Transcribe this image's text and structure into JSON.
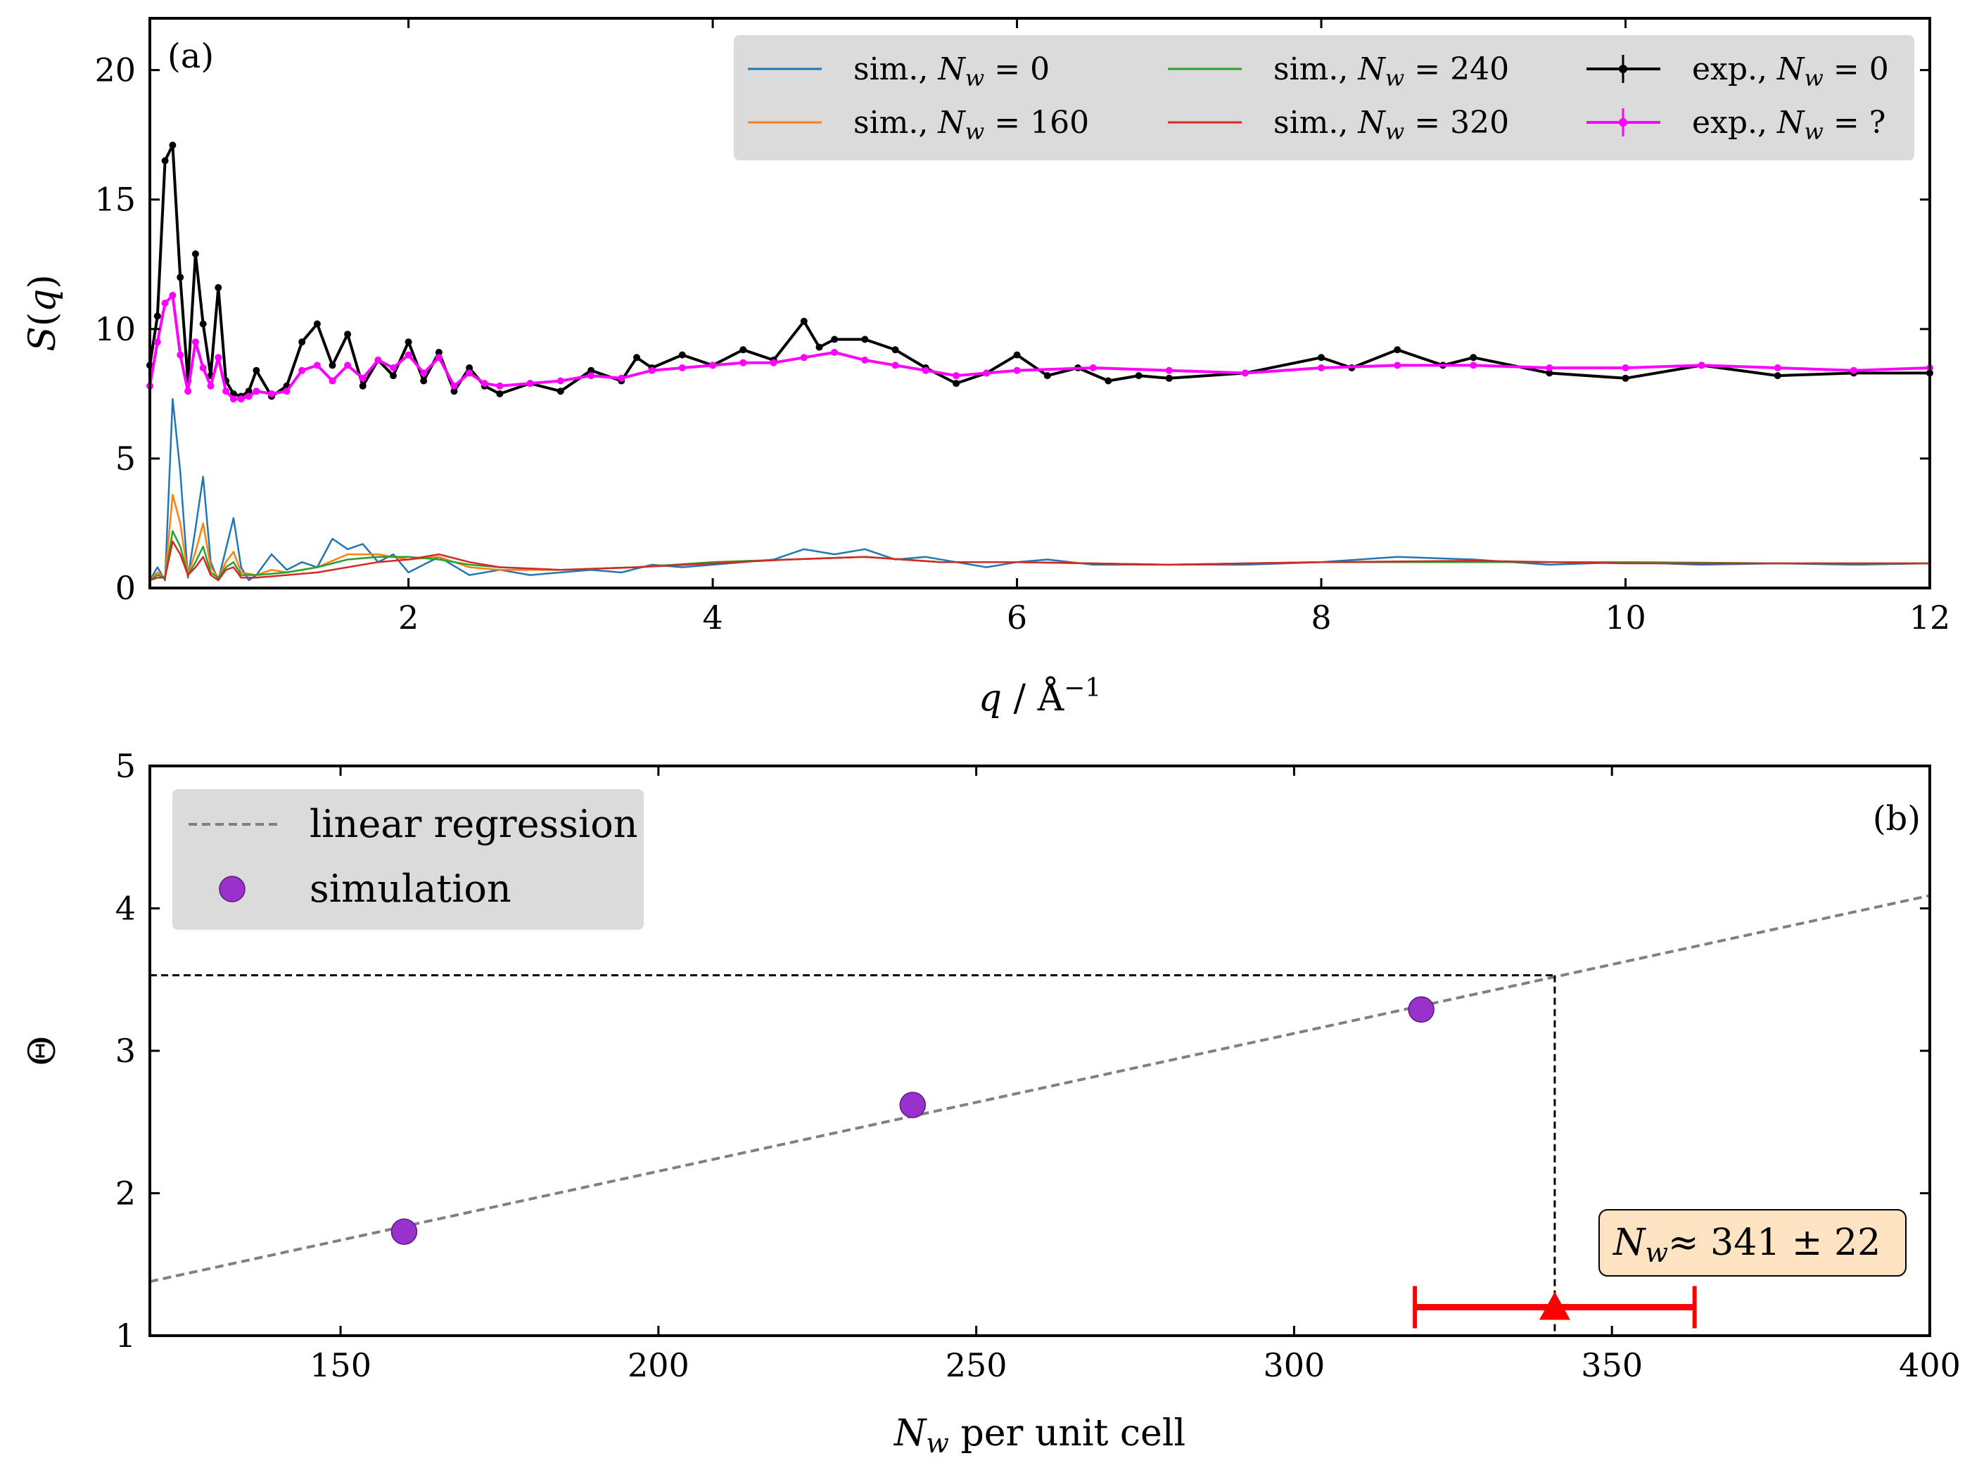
{
  "chart_data": [
    {
      "id": "a",
      "type": "line",
      "panel_label": "(a)",
      "xlabel": "q / Å⁻¹",
      "ylabel": "S(q)",
      "xlim": [
        0.3,
        12
      ],
      "ylim": [
        0,
        22
      ],
      "xticks": [
        2,
        4,
        6,
        8,
        10,
        12
      ],
      "xtick_labels": [
        "2",
        "4",
        "6",
        "8",
        "10",
        "12"
      ],
      "yticks": [
        0,
        5,
        10,
        15,
        20
      ],
      "ytick_labels": [
        "0",
        "5",
        "10",
        "15",
        "20"
      ],
      "legend_position": "top-right",
      "series": [
        {
          "name": "sim., N_w = 0",
          "label_text": "sim., Nw = 0",
          "color": "#1f77b4",
          "style": "line",
          "x": [
            0.3,
            0.35,
            0.4,
            0.45,
            0.5,
            0.55,
            0.6,
            0.65,
            0.7,
            0.75,
            0.8,
            0.85,
            0.9,
            0.95,
            1.0,
            1.1,
            1.2,
            1.3,
            1.4,
            1.5,
            1.6,
            1.7,
            1.8,
            1.9,
            2.0,
            2.2,
            2.4,
            2.6,
            2.8,
            3.0,
            3.2,
            3.4,
            3.6,
            3.8,
            4.0,
            4.2,
            4.4,
            4.6,
            4.8,
            5.0,
            5.2,
            5.4,
            5.6,
            5.8,
            6.0,
            6.2,
            6.5,
            7.0,
            7.5,
            8.0,
            8.5,
            9.0,
            9.5,
            10,
            10.5,
            11,
            11.5,
            12
          ],
          "y": [
            0.3,
            0.8,
            0.3,
            7.3,
            4.5,
            0.4,
            2.3,
            4.3,
            1.0,
            0.3,
            1.5,
            2.7,
            0.8,
            0.3,
            0.5,
            1.3,
            0.7,
            1.0,
            0.8,
            1.9,
            1.5,
            1.7,
            1.0,
            1.3,
            0.6,
            1.2,
            0.5,
            0.7,
            0.5,
            0.6,
            0.7,
            0.6,
            0.9,
            0.8,
            0.9,
            1.0,
            1.1,
            1.5,
            1.3,
            1.5,
            1.1,
            1.2,
            1.0,
            0.8,
            1.0,
            1.1,
            0.9,
            0.9,
            0.9,
            1.0,
            1.2,
            1.1,
            0.9,
            1.0,
            0.9,
            0.95,
            0.9,
            0.95
          ]
        },
        {
          "name": "sim., N_w = 160",
          "label_text": "sim., Nw = 160",
          "color": "#ff7f0e",
          "style": "line",
          "x": [
            0.3,
            0.35,
            0.4,
            0.45,
            0.5,
            0.55,
            0.6,
            0.65,
            0.7,
            0.75,
            0.8,
            0.85,
            0.9,
            1.0,
            1.1,
            1.2,
            1.4,
            1.6,
            1.8,
            2.0,
            2.2,
            2.4,
            2.6,
            3.0,
            3.5,
            4.0,
            4.5,
            5.0,
            5.5,
            6.0,
            7.0,
            8.0,
            9.0,
            10,
            11,
            12
          ],
          "y": [
            0.3,
            0.6,
            0.4,
            3.6,
            2.5,
            0.5,
            1.4,
            2.5,
            0.8,
            0.4,
            1.0,
            1.4,
            0.6,
            0.5,
            0.7,
            0.6,
            0.8,
            1.3,
            1.3,
            1.1,
            1.2,
            0.8,
            0.7,
            0.7,
            0.8,
            1.0,
            1.1,
            1.2,
            1.0,
            1.0,
            0.9,
            1.0,
            1.0,
            1.0,
            0.95,
            0.95
          ]
        },
        {
          "name": "sim., N_w = 240",
          "label_text": "sim., Nw = 240",
          "color": "#2ca02c",
          "style": "line",
          "x": [
            0.3,
            0.35,
            0.4,
            0.45,
            0.5,
            0.55,
            0.6,
            0.65,
            0.7,
            0.75,
            0.8,
            0.85,
            0.9,
            1.0,
            1.2,
            1.4,
            1.6,
            1.8,
            2.0,
            2.2,
            2.4,
            2.6,
            3.0,
            3.5,
            4.0,
            4.5,
            5.0,
            5.5,
            6.0,
            7.0,
            8.0,
            9.0,
            10,
            11,
            12
          ],
          "y": [
            0.3,
            0.5,
            0.4,
            2.2,
            1.6,
            0.5,
            1.0,
            1.6,
            0.6,
            0.4,
            0.8,
            1.0,
            0.5,
            0.5,
            0.6,
            0.8,
            1.1,
            1.2,
            1.2,
            1.1,
            0.9,
            0.8,
            0.7,
            0.8,
            1.0,
            1.1,
            1.2,
            1.0,
            1.0,
            0.9,
            1.0,
            1.0,
            1.0,
            0.95,
            0.95
          ]
        },
        {
          "name": "sim., N_w = 320",
          "label_text": "sim., Nw = 320",
          "color": "#d62728",
          "style": "line",
          "x": [
            0.3,
            0.35,
            0.4,
            0.45,
            0.5,
            0.55,
            0.6,
            0.65,
            0.7,
            0.75,
            0.8,
            0.85,
            0.9,
            1.0,
            1.2,
            1.4,
            1.6,
            1.8,
            2.0,
            2.2,
            2.4,
            2.6,
            3.0,
            3.5,
            4.0,
            4.5,
            5.0,
            5.5,
            6.0,
            7.0,
            8.0,
            9.0,
            10,
            11,
            12
          ],
          "y": [
            0.3,
            0.4,
            0.4,
            1.8,
            1.3,
            0.5,
            0.8,
            1.2,
            0.5,
            0.3,
            0.7,
            0.8,
            0.4,
            0.4,
            0.5,
            0.6,
            0.8,
            1.0,
            1.1,
            1.3,
            1.0,
            0.8,
            0.7,
            0.8,
            0.95,
            1.1,
            1.2,
            1.0,
            1.0,
            0.9,
            1.0,
            1.05,
            0.95,
            0.95,
            0.95
          ]
        },
        {
          "name": "exp., N_w = 0",
          "label_text": "exp., Nw = 0",
          "color": "#000000",
          "style": "line-marker",
          "x": [
            0.3,
            0.35,
            0.4,
            0.45,
            0.5,
            0.55,
            0.6,
            0.65,
            0.7,
            0.75,
            0.8,
            0.85,
            0.9,
            0.95,
            1.0,
            1.1,
            1.2,
            1.3,
            1.4,
            1.5,
            1.6,
            1.7,
            1.8,
            1.9,
            2.0,
            2.1,
            2.2,
            2.3,
            2.4,
            2.5,
            2.6,
            2.8,
            3.0,
            3.2,
            3.4,
            3.5,
            3.6,
            3.8,
            4.0,
            4.2,
            4.4,
            4.6,
            4.7,
            4.8,
            5.0,
            5.2,
            5.4,
            5.6,
            5.8,
            6.0,
            6.2,
            6.4,
            6.6,
            6.8,
            7.0,
            7.5,
            8.0,
            8.2,
            8.5,
            8.8,
            9.0,
            9.5,
            10,
            10.5,
            11,
            11.5,
            12
          ],
          "y": [
            8.6,
            10.5,
            16.5,
            17.1,
            12.0,
            8.0,
            12.9,
            10.2,
            8.2,
            11.6,
            8.0,
            7.5,
            7.4,
            7.6,
            8.4,
            7.4,
            7.8,
            9.5,
            10.2,
            8.6,
            9.8,
            7.8,
            8.8,
            8.2,
            9.5,
            8.0,
            9.1,
            7.6,
            8.5,
            7.8,
            7.5,
            7.9,
            7.6,
            8.4,
            8.0,
            8.9,
            8.5,
            9.0,
            8.6,
            9.2,
            8.8,
            10.3,
            9.3,
            9.6,
            9.6,
            9.2,
            8.5,
            7.9,
            8.3,
            9.0,
            8.2,
            8.5,
            8.0,
            8.2,
            8.1,
            8.3,
            8.9,
            8.5,
            9.2,
            8.6,
            8.9,
            8.3,
            8.1,
            8.6,
            8.2,
            8.3,
            8.3
          ]
        },
        {
          "name": "exp., N_w = ?",
          "label_text": "exp., Nw = ?",
          "color": "#ff00ff",
          "style": "line-marker",
          "x": [
            0.3,
            0.35,
            0.4,
            0.45,
            0.5,
            0.55,
            0.6,
            0.65,
            0.7,
            0.75,
            0.8,
            0.85,
            0.9,
            0.95,
            1.0,
            1.1,
            1.2,
            1.3,
            1.4,
            1.5,
            1.6,
            1.7,
            1.8,
            1.9,
            2.0,
            2.1,
            2.2,
            2.3,
            2.4,
            2.5,
            2.6,
            2.8,
            3.0,
            3.2,
            3.4,
            3.6,
            3.8,
            4.0,
            4.2,
            4.4,
            4.6,
            4.8,
            5.0,
            5.2,
            5.4,
            5.6,
            5.8,
            6.0,
            6.5,
            7.0,
            7.5,
            8.0,
            8.5,
            9.0,
            9.5,
            10,
            10.5,
            11,
            11.5,
            12
          ],
          "y": [
            7.8,
            9.5,
            11.0,
            11.3,
            9.0,
            7.6,
            9.5,
            8.5,
            7.8,
            8.9,
            7.6,
            7.3,
            7.3,
            7.4,
            7.6,
            7.5,
            7.6,
            8.4,
            8.6,
            8.0,
            8.6,
            8.1,
            8.8,
            8.5,
            9.0,
            8.3,
            8.9,
            7.8,
            8.3,
            7.9,
            7.8,
            7.9,
            8.0,
            8.2,
            8.1,
            8.4,
            8.5,
            8.6,
            8.7,
            8.7,
            8.9,
            9.1,
            8.8,
            8.6,
            8.4,
            8.2,
            8.3,
            8.4,
            8.5,
            8.4,
            8.3,
            8.5,
            8.6,
            8.6,
            8.5,
            8.5,
            8.6,
            8.5,
            8.4,
            8.5
          ]
        }
      ]
    },
    {
      "id": "b",
      "type": "scatter",
      "panel_label": "(b)",
      "xlabel": "N_w per unit cell",
      "ylabel": "Θ",
      "xlim": [
        120,
        400
      ],
      "ylim": [
        1,
        5
      ],
      "xticks": [
        150,
        200,
        250,
        300,
        350,
        400
      ],
      "xtick_labels": [
        "150",
        "200",
        "250",
        "300",
        "350",
        "400"
      ],
      "yticks": [
        1,
        2,
        3,
        4,
        5
      ],
      "ytick_labels": [
        "1",
        "2",
        "3",
        "4",
        "5"
      ],
      "legend_position": "top-left",
      "legend": [
        "linear regression",
        "simulation"
      ],
      "simulation_points": {
        "x": [
          160,
          240,
          320
        ],
        "y": [
          1.73,
          2.62,
          3.29
        ]
      },
      "regression_line": {
        "x": [
          120,
          400
        ],
        "y": [
          1.38,
          4.09
        ]
      },
      "reference_lines": {
        "theta": 3.53,
        "nw": 341
      },
      "estimate": {
        "x": 341,
        "xerr_low": 319,
        "xerr_high": 363,
        "y": 1.2,
        "color": "#ff0000"
      },
      "annotation": "N_w ≈ 341 ± 22",
      "annotation_text": "≈ 341 ± 22"
    }
  ]
}
